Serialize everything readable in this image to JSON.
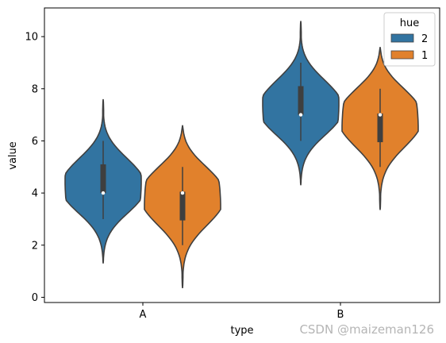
{
  "chart_data": {
    "type": "violin",
    "xlabel": "type",
    "ylabel": "value",
    "categories": [
      "A",
      "B"
    ],
    "ylim": [
      -0.2,
      11.1
    ],
    "yticks": [
      "0",
      "2",
      "4",
      "6",
      "8",
      "10"
    ],
    "legend": {
      "title": "hue",
      "placement": "top-right"
    },
    "series": [
      {
        "name": "2",
        "color": "#3274a1",
        "violins": [
          {
            "category": "A",
            "min": 1.3,
            "max": 7.6,
            "q1": 4.0,
            "median": 4.0,
            "q3": 5.1,
            "whisker_low": 3.0,
            "whisker_high": 6.0
          },
          {
            "category": "B",
            "min": 4.3,
            "max": 10.6,
            "q1": 7.0,
            "median": 7.0,
            "q3": 8.1,
            "whisker_low": 6.0,
            "whisker_high": 9.0
          }
        ]
      },
      {
        "name": "1",
        "color": "#e1812c",
        "violins": [
          {
            "category": "A",
            "min": 0.35,
            "max": 6.6,
            "q1": 2.95,
            "median": 4.0,
            "q3": 4.05,
            "whisker_low": 2.0,
            "whisker_high": 5.0
          },
          {
            "category": "B",
            "min": 3.35,
            "max": 9.6,
            "q1": 5.95,
            "median": 7.0,
            "q3": 7.05,
            "whisker_low": 5.0,
            "whisker_high": 8.0
          }
        ]
      }
    ],
    "grid": false
  },
  "watermark": "CSDN @maizeman126"
}
